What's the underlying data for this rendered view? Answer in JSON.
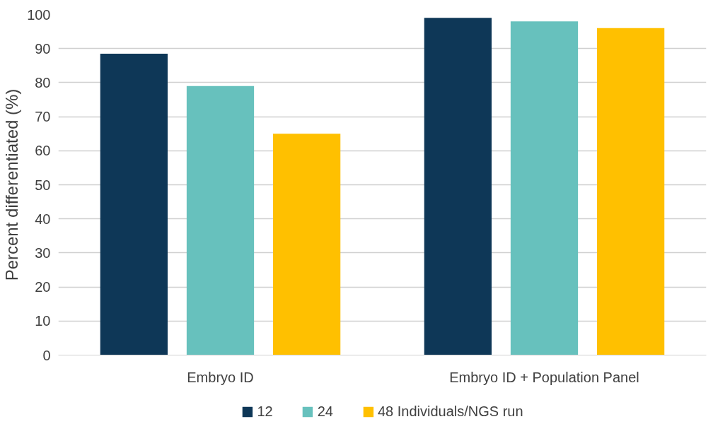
{
  "chart_data": {
    "type": "bar",
    "ylabel": "Percent differentiated (%)",
    "categories": [
      "Embryo ID",
      "Embryo ID + Population Panel"
    ],
    "series": [
      {
        "name": "12",
        "color": "#0e3757",
        "values": [
          88.5,
          99
        ]
      },
      {
        "name": "24",
        "color": "#67c1bd",
        "values": [
          79,
          98
        ]
      },
      {
        "name": "48 Individuals/NGS run",
        "color": "#ffc000",
        "values": [
          65,
          96
        ]
      }
    ],
    "ylim": [
      0,
      100
    ],
    "yticks": [
      0,
      10,
      20,
      30,
      40,
      50,
      60,
      70,
      80,
      90,
      100
    ],
    "grid": "y",
    "legend": "bottom"
  }
}
